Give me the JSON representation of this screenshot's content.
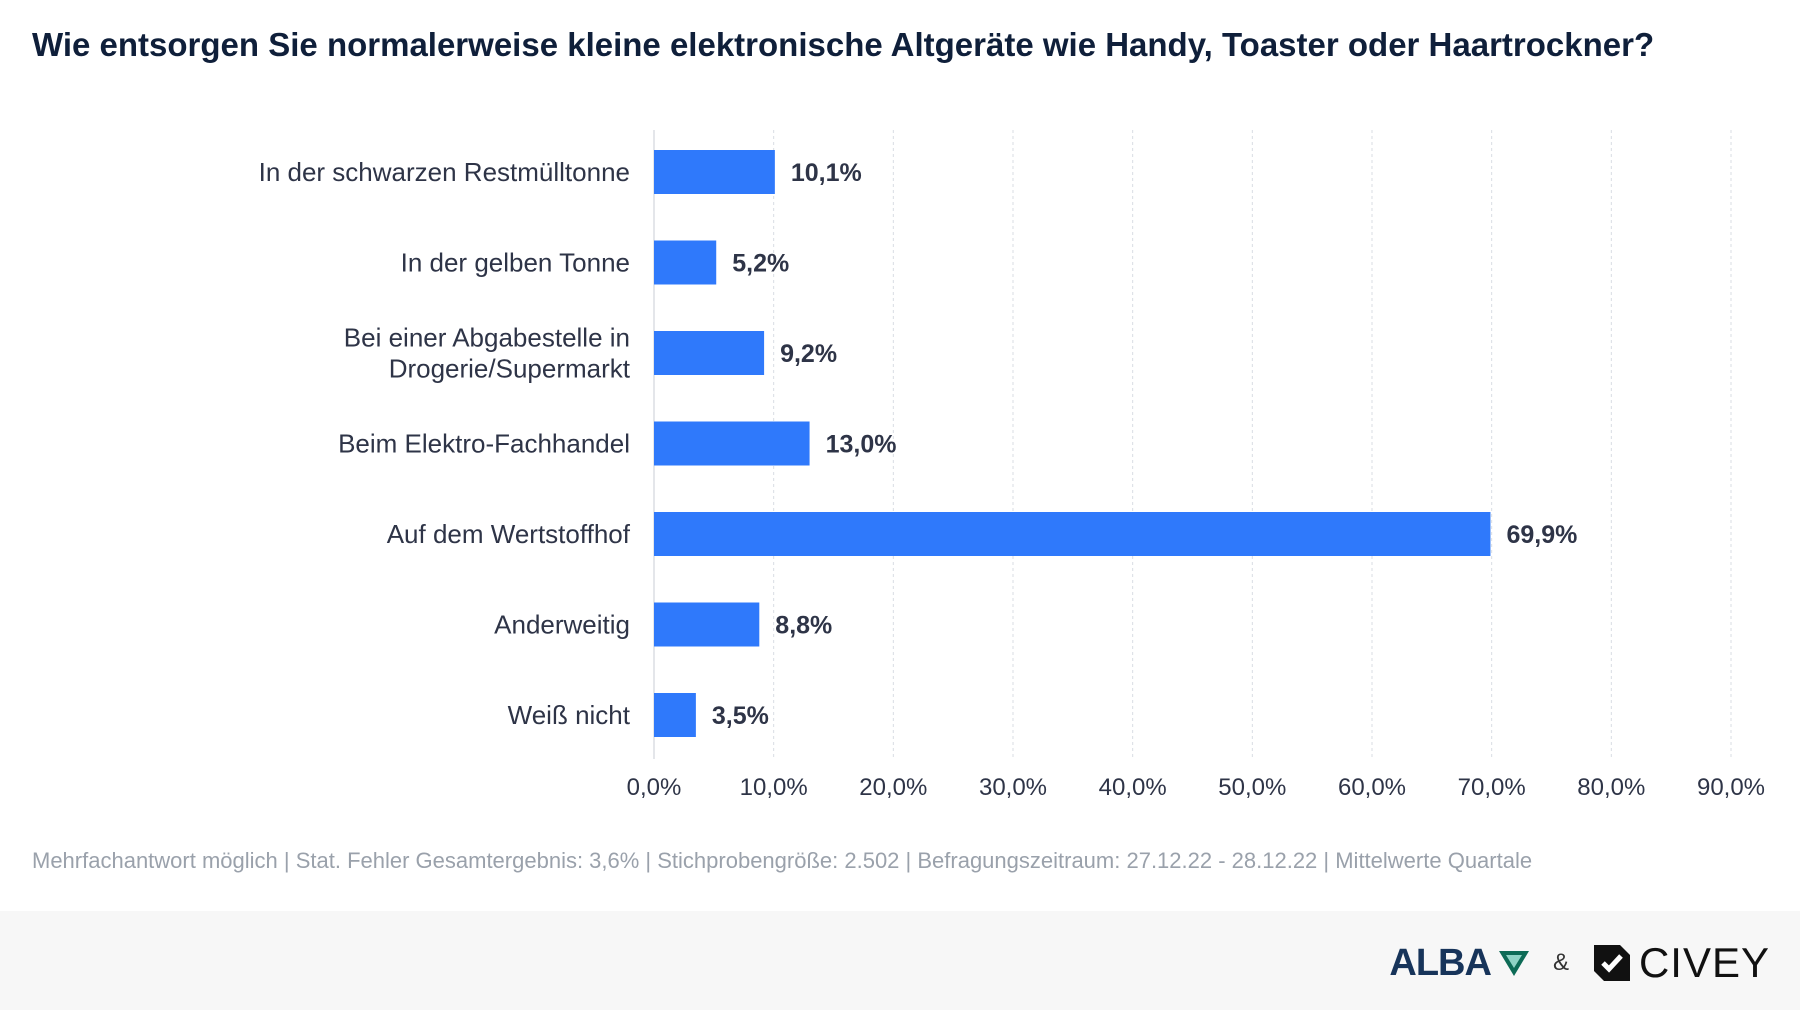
{
  "title": "Wie entsorgen Sie normalerweise kleine elektronische Altgeräte wie Handy, Toaster oder Haartrockner?",
  "note": "Mehrfachantwort möglich | Stat. Fehler Gesamtergebnis: 3,6% | Stichprobengröße: 2.502 | Befragungszeitraum: 27.12.22 - 28.12.22 | Mittelwerte Quartale",
  "footer": {
    "brand_left": "ALBA",
    "ampersand": "&",
    "brand_right": "CIVEY"
  },
  "colors": {
    "bar": "#2f79fb",
    "text": "#2e3447",
    "grid": "#d9dde3"
  },
  "chart_data": {
    "type": "bar",
    "orientation": "horizontal",
    "categories": [
      [
        "In der schwarzen Restmülltonne"
      ],
      [
        "In der gelben Tonne"
      ],
      [
        "Bei einer Abgabestelle in",
        "Drogerie/Supermarkt"
      ],
      [
        "Beim Elektro-Fachhandel"
      ],
      [
        "Auf dem Wertstoffhof"
      ],
      [
        "Anderweitig"
      ],
      [
        "Weiß nicht"
      ]
    ],
    "values": [
      10.1,
      5.2,
      9.2,
      13.0,
      69.9,
      8.8,
      3.5
    ],
    "value_labels": [
      "10,1%",
      "5,2%",
      "9,2%",
      "13,0%",
      "69,9%",
      "8,8%",
      "3,5%"
    ],
    "xlim": [
      0,
      90
    ],
    "ticks": [
      0,
      10,
      20,
      30,
      40,
      50,
      60,
      70,
      80,
      90
    ],
    "tick_labels": [
      "0,0%",
      "10,0%",
      "20,0%",
      "30,0%",
      "40,0%",
      "50,0%",
      "60,0%",
      "70,0%",
      "80,0%",
      "90,0%"
    ],
    "grid": true,
    "legend": "none"
  }
}
